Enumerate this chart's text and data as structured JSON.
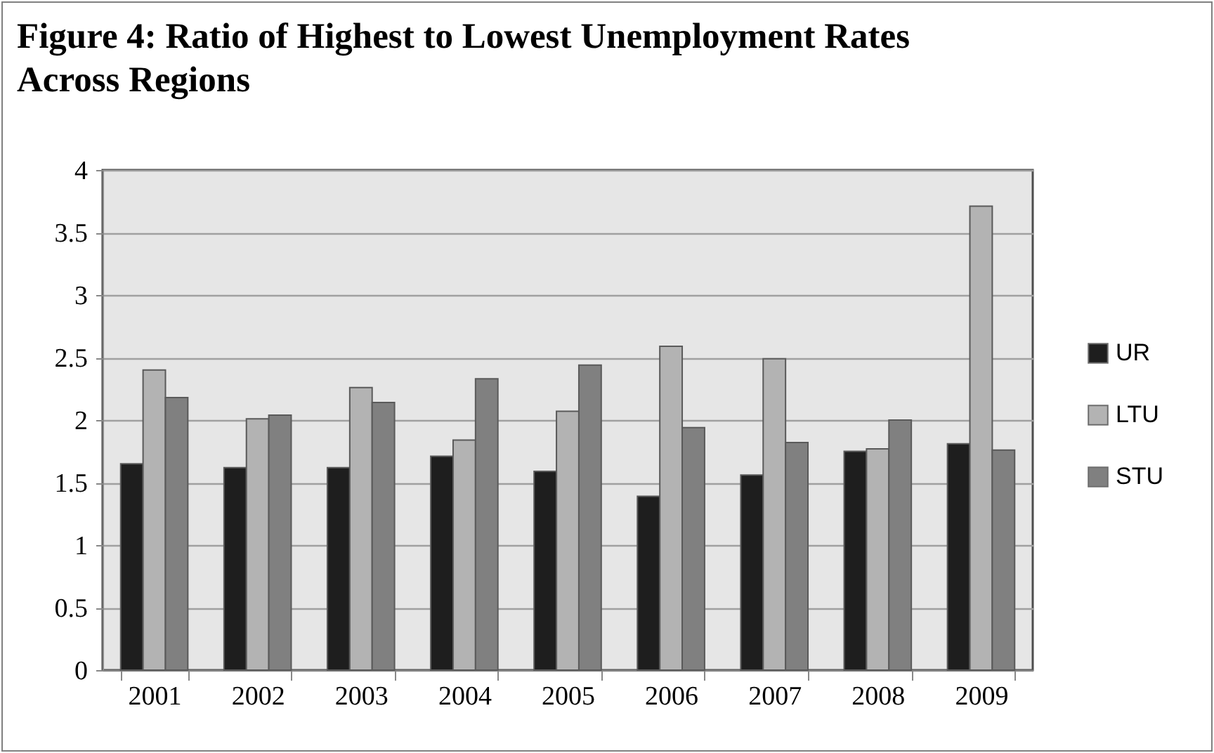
{
  "chart_data": {
    "type": "bar",
    "title": "Figure 4: Ratio of Highest to Lowest Unemployment Rates Across Regions",
    "categories": [
      "2001",
      "2002",
      "2003",
      "2004",
      "2005",
      "2006",
      "2007",
      "2008",
      "2009"
    ],
    "series": [
      {
        "name": "UR",
        "color": "#1e1e1e",
        "values": [
          1.65,
          1.62,
          1.62,
          1.71,
          1.59,
          1.39,
          1.56,
          1.75,
          1.81
        ]
      },
      {
        "name": "LTU",
        "color": "#b3b3b3",
        "values": [
          2.4,
          2.01,
          2.26,
          1.84,
          2.07,
          2.59,
          2.49,
          1.77,
          3.71
        ]
      },
      {
        "name": "STU",
        "color": "#808080",
        "values": [
          2.18,
          2.04,
          2.14,
          2.33,
          2.44,
          1.94,
          1.82,
          2.0,
          1.76
        ]
      }
    ],
    "ylim": [
      0,
      4
    ],
    "yticks": [
      0,
      0.5,
      1,
      1.5,
      2,
      2.5,
      3,
      3.5,
      4
    ],
    "grid": "y",
    "legend": "right"
  }
}
